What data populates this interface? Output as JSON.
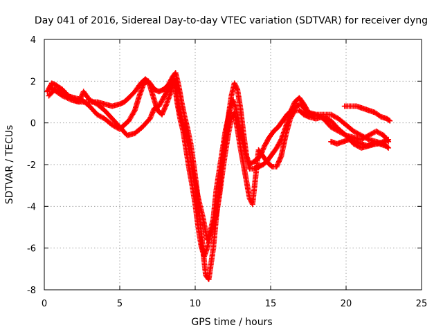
{
  "chart_data": {
    "type": "scatter",
    "title": "Day 041 of 2016, Sidereal Day-to-day VTEC variation (SDTVAR) for receiver dyng",
    "xlabel": "GPS time / hours",
    "ylabel": "SDTVAR / TECUs",
    "xlim": [
      0,
      25
    ],
    "ylim": [
      -8,
      4
    ],
    "xticks": [
      "0",
      "5",
      "10",
      "15",
      "20",
      "25"
    ],
    "yticks": [
      "-8",
      "-6",
      "-4",
      "-2",
      "0",
      "2",
      "4"
    ],
    "grid": true,
    "marker": "+",
    "color": "#ff0000",
    "series": [
      {
        "values": [
          [
            0.2,
            1.5
          ],
          [
            0.5,
            1.9
          ],
          [
            0.8,
            1.8
          ],
          [
            1.2,
            1.6
          ],
          [
            1.6,
            1.3
          ],
          [
            2.0,
            1.1
          ],
          [
            2.5,
            1.0
          ],
          [
            3.0,
            1.0
          ],
          [
            3.5,
            1.0
          ],
          [
            4.0,
            0.9
          ],
          [
            4.5,
            0.8
          ],
          [
            5.0,
            0.9
          ],
          [
            5.3,
            1.0
          ],
          [
            5.6,
            1.2
          ],
          [
            6.0,
            1.5
          ],
          [
            6.4,
            1.9
          ],
          [
            6.7,
            2.1
          ],
          [
            7.0,
            1.9
          ],
          [
            7.3,
            1.6
          ],
          [
            7.6,
            1.5
          ],
          [
            7.9,
            1.6
          ],
          [
            8.2,
            1.8
          ],
          [
            8.5,
            2.2
          ],
          [
            8.7,
            2.4
          ],
          [
            8.9,
            1.8
          ],
          [
            9.1,
            1.0
          ],
          [
            9.3,
            0.3
          ],
          [
            9.5,
            -0.3
          ],
          [
            9.7,
            -1.0
          ],
          [
            9.9,
            -2.0
          ],
          [
            10.1,
            -3.1
          ],
          [
            10.3,
            -4.5
          ],
          [
            10.5,
            -6.0
          ],
          [
            10.7,
            -7.3
          ],
          [
            10.9,
            -7.5
          ],
          [
            11.0,
            -7.0
          ],
          [
            11.2,
            -6.0
          ],
          [
            11.4,
            -4.5
          ],
          [
            11.6,
            -3.2
          ],
          [
            11.8,
            -1.9
          ],
          [
            12.0,
            -0.8
          ],
          [
            12.2,
            0.3
          ],
          [
            12.4,
            1.3
          ],
          [
            12.6,
            1.9
          ],
          [
            12.8,
            1.6
          ],
          [
            13.0,
            0.7
          ],
          [
            13.2,
            -0.5
          ],
          [
            13.4,
            -1.6
          ],
          [
            13.6,
            -2.2
          ],
          [
            13.9,
            -2.2
          ],
          [
            14.2,
            -2.1
          ],
          [
            14.5,
            -2.0
          ],
          [
            14.8,
            -1.8
          ],
          [
            15.1,
            -1.5
          ],
          [
            15.4,
            -1.2
          ],
          [
            15.7,
            -0.8
          ],
          [
            16.0,
            -0.2
          ],
          [
            16.3,
            0.5
          ],
          [
            16.6,
            1.0
          ],
          [
            16.9,
            1.2
          ],
          [
            17.2,
            0.9
          ],
          [
            17.5,
            0.5
          ],
          [
            18.0,
            0.4
          ],
          [
            18.5,
            0.4
          ],
          [
            19.0,
            0.4
          ],
          [
            19.5,
            0.2
          ],
          [
            20.0,
            -0.1
          ],
          [
            20.5,
            -0.4
          ],
          [
            21.0,
            -0.6
          ],
          [
            21.5,
            -0.8
          ],
          [
            22.0,
            -0.9
          ],
          [
            22.5,
            -1.0
          ],
          [
            22.8,
            -1.2
          ]
        ]
      },
      {
        "values": [
          [
            0.3,
            1.3
          ],
          [
            0.7,
            1.6
          ],
          [
            1.0,
            1.5
          ],
          [
            1.5,
            1.3
          ],
          [
            2.0,
            1.2
          ],
          [
            2.5,
            1.1
          ],
          [
            3.0,
            0.8
          ],
          [
            3.5,
            0.4
          ],
          [
            4.0,
            0.2
          ],
          [
            4.5,
            -0.1
          ],
          [
            5.0,
            -0.3
          ],
          [
            5.3,
            -0.1
          ],
          [
            5.6,
            0.1
          ],
          [
            6.0,
            0.6
          ],
          [
            6.3,
            1.3
          ],
          [
            6.6,
            1.9
          ],
          [
            6.9,
            2.0
          ],
          [
            7.2,
            1.3
          ],
          [
            7.5,
            0.6
          ],
          [
            7.8,
            0.4
          ],
          [
            8.1,
            0.9
          ],
          [
            8.4,
            1.5
          ],
          [
            8.6,
            2.1
          ],
          [
            8.8,
            1.0
          ],
          [
            9.0,
            0.2
          ],
          [
            9.2,
            -0.4
          ],
          [
            9.4,
            -1.3
          ],
          [
            9.6,
            -2.2
          ],
          [
            9.8,
            -3.0
          ],
          [
            10.0,
            -3.9
          ],
          [
            10.2,
            -5.0
          ],
          [
            10.4,
            -5.9
          ],
          [
            10.6,
            -6.4
          ],
          [
            10.8,
            -6.0
          ],
          [
            11.0,
            -5.4
          ],
          [
            11.2,
            -4.9
          ],
          [
            11.4,
            -4.4
          ],
          [
            11.6,
            -3.5
          ],
          [
            11.8,
            -2.4
          ],
          [
            12.0,
            -1.4
          ],
          [
            12.2,
            -0.5
          ],
          [
            12.4,
            0.2
          ],
          [
            12.6,
            0.5
          ],
          [
            12.8,
            -0.3
          ],
          [
            13.0,
            -1.2
          ],
          [
            13.2,
            -2.0
          ],
          [
            13.4,
            -2.8
          ],
          [
            13.6,
            -3.6
          ],
          [
            13.8,
            -3.9
          ],
          [
            14.2,
            -1.3
          ],
          [
            14.5,
            -1.6
          ],
          [
            14.8,
            -1.9
          ],
          [
            15.1,
            -2.1
          ],
          [
            15.4,
            -2.1
          ],
          [
            15.7,
            -1.6
          ],
          [
            16.0,
            -0.6
          ],
          [
            16.3,
            0.2
          ],
          [
            16.6,
            0.6
          ],
          [
            16.9,
            0.6
          ],
          [
            17.2,
            0.4
          ],
          [
            17.5,
            0.3
          ],
          [
            18.0,
            0.2
          ],
          [
            18.5,
            0.3
          ],
          [
            19.0,
            0.1
          ],
          [
            19.5,
            -0.3
          ],
          [
            20.0,
            -0.6
          ],
          [
            20.5,
            -1.0
          ],
          [
            21.0,
            -1.2
          ],
          [
            21.5,
            -1.1
          ],
          [
            22.0,
            -1.0
          ],
          [
            22.5,
            -0.9
          ],
          [
            22.8,
            -0.8
          ]
        ]
      },
      {
        "values": [
          [
            0.4,
            1.7
          ],
          [
            0.8,
            1.5
          ],
          [
            1.2,
            1.3
          ],
          [
            1.8,
            1.1
          ],
          [
            2.3,
            1.0
          ],
          [
            2.6,
            1.5
          ],
          [
            3.0,
            1.1
          ],
          [
            3.5,
            0.9
          ],
          [
            4.0,
            0.6
          ],
          [
            4.5,
            0.2
          ],
          [
            5.0,
            -0.2
          ],
          [
            5.5,
            -0.6
          ],
          [
            6.0,
            -0.5
          ],
          [
            6.5,
            -0.2
          ],
          [
            7.0,
            0.2
          ],
          [
            7.3,
            0.7
          ],
          [
            7.6,
            0.8
          ],
          [
            7.9,
            1.2
          ],
          [
            8.2,
            1.6
          ],
          [
            8.5,
            2.0
          ],
          [
            8.7,
            1.7
          ],
          [
            9.0,
            0.5
          ],
          [
            9.3,
            -0.4
          ],
          [
            9.6,
            -1.3
          ],
          [
            9.9,
            -2.6
          ],
          [
            10.2,
            -3.6
          ],
          [
            10.5,
            -4.5
          ],
          [
            10.8,
            -5.6
          ],
          [
            11.0,
            -5.2
          ],
          [
            11.2,
            -4.6
          ],
          [
            11.4,
            -3.2
          ],
          [
            11.7,
            -1.8
          ],
          [
            12.0,
            -0.4
          ],
          [
            12.3,
            0.6
          ],
          [
            12.5,
            1.1
          ],
          [
            12.7,
            0.7
          ],
          [
            12.9,
            0.0
          ],
          [
            13.1,
            -0.8
          ],
          [
            13.3,
            -1.4
          ],
          [
            13.6,
            -2.0
          ],
          [
            14.0,
            -1.8
          ],
          [
            14.3,
            -1.6
          ],
          [
            14.6,
            -1.1
          ],
          [
            14.9,
            -0.7
          ],
          [
            15.2,
            -0.4
          ],
          [
            15.5,
            -0.2
          ],
          [
            15.8,
            0.1
          ],
          [
            16.1,
            0.4
          ],
          [
            16.4,
            0.6
          ],
          [
            16.7,
            0.8
          ],
          [
            17.0,
            0.9
          ],
          [
            17.5,
            0.4
          ],
          [
            18.0,
            0.4
          ],
          [
            18.5,
            0.2
          ],
          [
            19.0,
            -0.2
          ],
          [
            19.5,
            -0.4
          ],
          [
            20.0,
            -0.6
          ],
          [
            20.5,
            -0.7
          ],
          [
            21.0,
            -0.8
          ],
          [
            21.5,
            -0.6
          ],
          [
            22.0,
            -0.4
          ],
          [
            22.5,
            -0.6
          ],
          [
            22.8,
            -0.9
          ]
        ]
      },
      {
        "values": [
          [
            19.9,
            0.8
          ],
          [
            20.3,
            0.8
          ],
          [
            20.7,
            0.8
          ],
          [
            21.1,
            0.7
          ],
          [
            21.5,
            0.6
          ],
          [
            21.9,
            0.5
          ],
          [
            22.3,
            0.3
          ],
          [
            22.7,
            0.2
          ],
          [
            22.9,
            0.1
          ]
        ]
      },
      {
        "values": [
          [
            19.0,
            -0.9
          ],
          [
            19.4,
            -1.0
          ],
          [
            19.8,
            -0.9
          ],
          [
            20.2,
            -0.8
          ],
          [
            20.6,
            -0.9
          ],
          [
            21.0,
            -1.0
          ],
          [
            21.4,
            -1.1
          ],
          [
            21.8,
            -1.0
          ],
          [
            22.2,
            -1.0
          ],
          [
            22.6,
            -1.1
          ]
        ]
      }
    ]
  }
}
